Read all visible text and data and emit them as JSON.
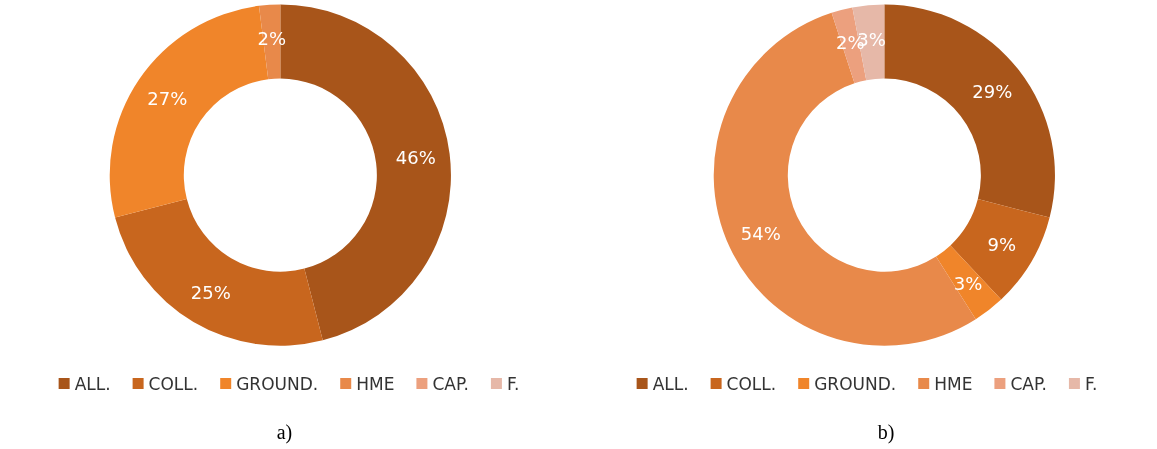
{
  "chart_data": [
    {
      "type": "donut",
      "title": "a)",
      "categories": [
        "ALL.",
        "COLL.",
        "GROUND.",
        "HME",
        "CAP.",
        "F."
      ],
      "values": [
        46,
        25,
        27,
        2,
        0,
        0
      ],
      "value_labels": [
        "46%",
        "25%",
        "27%",
        "2%",
        null,
        null
      ],
      "colors": [
        "#a8551a",
        "#c8661e",
        "#f0852a",
        "#e8894a",
        "#eca07e",
        "#e6b8a8"
      ],
      "legend": "bottom"
    },
    {
      "type": "donut",
      "title": "b)",
      "categories": [
        "ALL.",
        "COLL.",
        "GROUND.",
        "HME",
        "CAP.",
        "F."
      ],
      "values": [
        29,
        9,
        3,
        54,
        2,
        3
      ],
      "value_labels": [
        "29%",
        "9%",
        "3%",
        "54%",
        "2%",
        "3%"
      ],
      "colors": [
        "#a8551a",
        "#c8661e",
        "#f0852a",
        "#e8894a",
        "#eca07e",
        "#e6b8a8"
      ],
      "legend": "bottom"
    }
  ]
}
